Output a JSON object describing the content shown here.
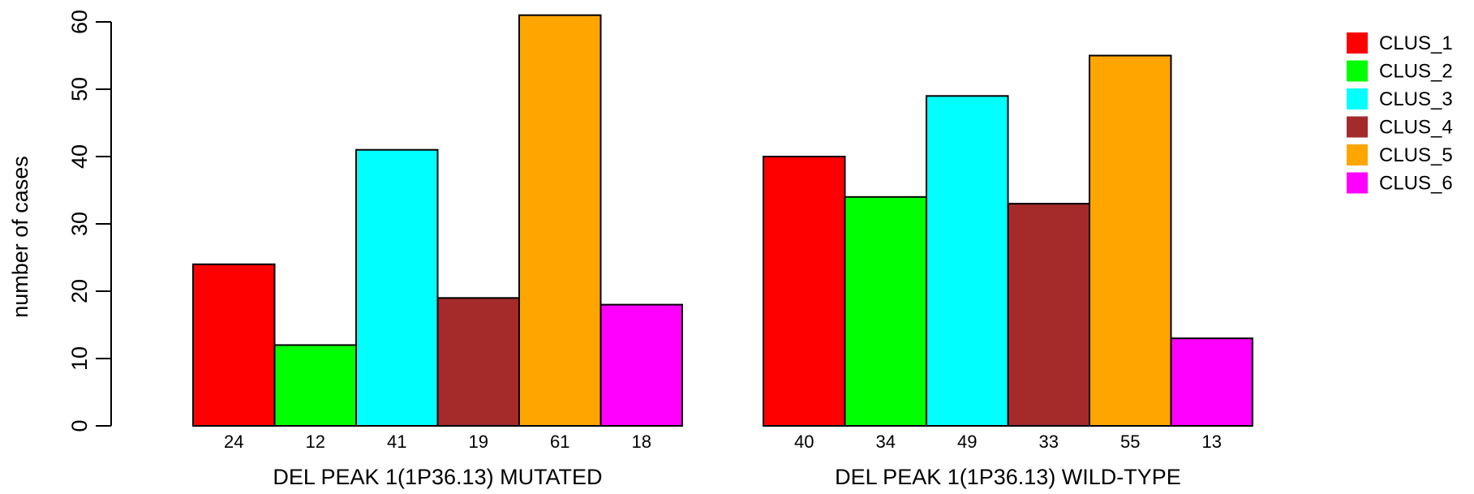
{
  "chart_data": {
    "type": "bar",
    "ylabel": "number of cases",
    "ylim": [
      0,
      60
    ],
    "yticks": [
      0,
      10,
      20,
      30,
      40,
      50,
      60
    ],
    "groups": [
      {
        "label": "DEL PEAK  1(1P36.13) MUTATED",
        "values": [
          24,
          12,
          41,
          19,
          61,
          18
        ]
      },
      {
        "label": "DEL PEAK  1(1P36.13) WILD-TYPE",
        "values": [
          40,
          34,
          49,
          33,
          55,
          13
        ]
      }
    ],
    "series": [
      {
        "name": "CLUS_1",
        "color": "#ff0000"
      },
      {
        "name": "CLUS_2",
        "color": "#00ff00"
      },
      {
        "name": "CLUS_3",
        "color": "#00ffff"
      },
      {
        "name": "CLUS_4",
        "color": "#a52a2a"
      },
      {
        "name": "CLUS_5",
        "color": "#ffa500"
      },
      {
        "name": "CLUS_6",
        "color": "#ff00ff"
      }
    ],
    "legend_position": "top-right",
    "grid": false
  }
}
